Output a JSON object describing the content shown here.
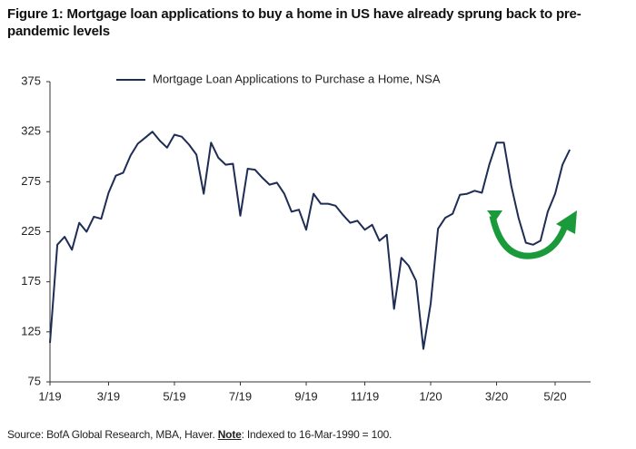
{
  "chart_data": {
    "type": "line",
    "title": "Figure 1: Mortgage loan applications to buy a home in US have already sprung back to pre-pandemic levels",
    "categories": [
      "1/19",
      null,
      null,
      null,
      null,
      null,
      null,
      null,
      "3/19",
      null,
      null,
      null,
      null,
      null,
      null,
      null,
      null,
      "5/19",
      null,
      null,
      null,
      null,
      null,
      null,
      null,
      null,
      "7/19",
      null,
      null,
      null,
      null,
      null,
      null,
      null,
      null,
      "9/19",
      null,
      null,
      null,
      null,
      null,
      null,
      null,
      "11/19",
      null,
      null,
      null,
      null,
      null,
      null,
      null,
      null,
      "1/20",
      null,
      null,
      null,
      null,
      null,
      null,
      null,
      null,
      "3/20",
      null,
      null,
      null,
      null,
      null,
      null,
      null,
      "5/20",
      null,
      null
    ],
    "series": [
      {
        "name": "Mortgage Loan Applications to Purchase a Home, NSA",
        "color": "#1f2d55",
        "values": [
          114,
          212,
          220,
          207,
          234,
          225,
          240,
          238,
          264,
          281,
          284,
          301,
          313,
          319,
          325,
          316,
          309,
          322,
          320,
          312,
          302,
          263,
          314,
          299,
          292,
          293,
          241,
          288,
          287,
          279,
          272,
          274,
          263,
          245,
          247,
          227,
          263,
          253,
          253,
          251,
          242,
          234,
          236,
          227,
          232,
          216,
          222,
          148,
          199,
          191,
          176,
          108,
          153,
          228,
          239,
          243,
          262,
          263,
          266,
          264,
          292,
          314,
          314,
          271,
          239,
          214,
          212,
          216,
          245,
          263,
          292,
          307
        ]
      }
    ],
    "ylim": [
      75,
      375
    ],
    "yticks": [
      75,
      125,
      175,
      225,
      275,
      325,
      375
    ],
    "grid": false,
    "legend": "top",
    "source": "Source: BofA Global Research, MBA, Haver.",
    "note_label": "Note",
    "note": ":  Indexed to 16-Mar-1990 = 100."
  }
}
